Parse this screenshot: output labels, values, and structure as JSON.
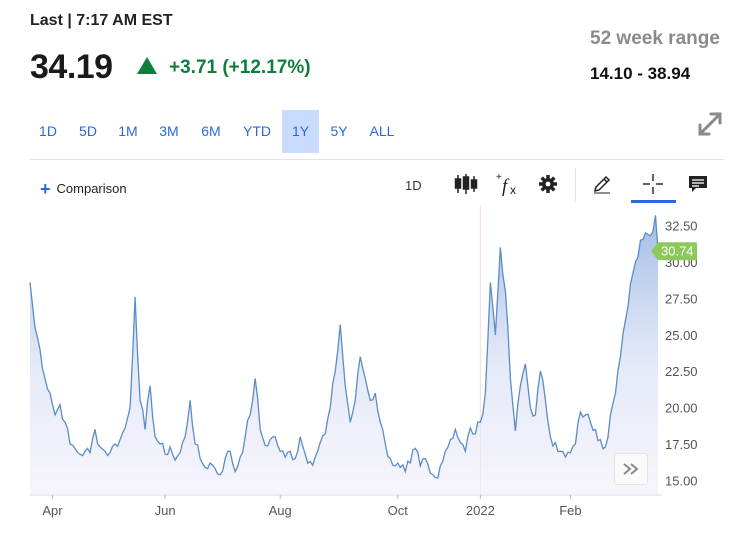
{
  "header": {
    "last_label": "Last | 7:17 AM EST",
    "price": "34.19",
    "change": "+3.71 (+12.17%)",
    "range_label": "52 week range",
    "range_value": "14.10 - 38.94"
  },
  "colors": {
    "up": "#0f7d3c",
    "accent": "#2a6ad8",
    "line": "#5b8cc6",
    "badge": "#8dc95a"
  },
  "ranges": [
    {
      "label": "1D",
      "active": false
    },
    {
      "label": "5D",
      "active": false
    },
    {
      "label": "1M",
      "active": false
    },
    {
      "label": "3M",
      "active": false
    },
    {
      "label": "6M",
      "active": false
    },
    {
      "label": "YTD",
      "active": false
    },
    {
      "label": "1Y",
      "active": true
    },
    {
      "label": "5Y",
      "active": false
    },
    {
      "label": "ALL",
      "active": false
    }
  ],
  "toolbar": {
    "comparison": "Comparison",
    "interval": "1D",
    "icons": [
      "candlestick-icon",
      "function-icon",
      "gear-icon",
      "pencil-icon",
      "crosshair-icon",
      "comment-icon"
    ]
  },
  "chart_data": {
    "type": "area",
    "x_ticks": [
      "Apr",
      "Jun",
      "Aug",
      "Oct",
      "2022",
      "Feb"
    ],
    "y_ticks": [
      "15.00",
      "17.50",
      "20.00",
      "22.50",
      "25.00",
      "27.50",
      "30.00",
      "32.50"
    ],
    "ylim": [
      14.0,
      33.5
    ],
    "last_value_label": "30.74",
    "last_value": 30.74,
    "n_points": 252,
    "keypoints": [
      [
        0,
        28.6
      ],
      [
        2,
        25.5
      ],
      [
        4,
        24.0
      ],
      [
        6,
        22.0
      ],
      [
        8,
        21.0
      ],
      [
        10,
        19.5
      ],
      [
        12,
        20.2
      ],
      [
        14,
        19.0
      ],
      [
        16,
        17.5
      ],
      [
        18,
        17.2
      ],
      [
        20,
        16.8
      ],
      [
        22,
        17.0
      ],
      [
        24,
        16.9
      ],
      [
        26,
        18.5
      ],
      [
        28,
        17.3
      ],
      [
        30,
        17.0
      ],
      [
        32,
        16.9
      ],
      [
        34,
        17.5
      ],
      [
        36,
        17.8
      ],
      [
        38,
        18.6
      ],
      [
        40,
        20.0
      ],
      [
        42,
        27.6
      ],
      [
        44,
        20.5
      ],
      [
        46,
        18.5
      ],
      [
        48,
        21.5
      ],
      [
        50,
        18.0
      ],
      [
        52,
        17.5
      ],
      [
        54,
        16.8
      ],
      [
        56,
        17.3
      ],
      [
        58,
        16.4
      ],
      [
        60,
        16.9
      ],
      [
        62,
        18.0
      ],
      [
        64,
        20.5
      ],
      [
        66,
        17.5
      ],
      [
        68,
        16.5
      ],
      [
        70,
        15.9
      ],
      [
        72,
        16.2
      ],
      [
        74,
        15.8
      ],
      [
        76,
        15.4
      ],
      [
        78,
        16.5
      ],
      [
        80,
        17.0
      ],
      [
        82,
        15.6
      ],
      [
        84,
        16.6
      ],
      [
        86,
        18.0
      ],
      [
        88,
        19.5
      ],
      [
        90,
        22.0
      ],
      [
        92,
        18.5
      ],
      [
        94,
        17.4
      ],
      [
        96,
        17.8
      ],
      [
        98,
        18.0
      ],
      [
        100,
        17.0
      ],
      [
        102,
        16.6
      ],
      [
        104,
        17.0
      ],
      [
        106,
        16.5
      ],
      [
        108,
        18.0
      ],
      [
        110,
        16.8
      ],
      [
        112,
        16.3
      ],
      [
        114,
        16.6
      ],
      [
        116,
        17.6
      ],
      [
        118,
        18.2
      ],
      [
        120,
        20.0
      ],
      [
        122,
        22.5
      ],
      [
        124,
        25.7
      ],
      [
        126,
        21.5
      ],
      [
        128,
        19.0
      ],
      [
        130,
        20.5
      ],
      [
        132,
        23.5
      ],
      [
        134,
        22.0
      ],
      [
        136,
        20.5
      ],
      [
        138,
        21.0
      ],
      [
        140,
        19.0
      ],
      [
        142,
        17.5
      ],
      [
        144,
        16.5
      ],
      [
        146,
        16.0
      ],
      [
        148,
        15.9
      ],
      [
        150,
        15.6
      ],
      [
        152,
        16.2
      ],
      [
        154,
        17.2
      ],
      [
        156,
        16.0
      ],
      [
        158,
        16.5
      ],
      [
        160,
        15.5
      ],
      [
        162,
        15.2
      ],
      [
        164,
        16.0
      ],
      [
        166,
        17.0
      ],
      [
        168,
        17.8
      ],
      [
        170,
        18.5
      ],
      [
        172,
        17.6
      ],
      [
        174,
        17.0
      ],
      [
        176,
        18.6
      ],
      [
        178,
        18.2
      ],
      [
        180,
        19.0
      ],
      [
        182,
        21.0
      ],
      [
        184,
        28.6
      ],
      [
        186,
        25.0
      ],
      [
        188,
        31.0
      ],
      [
        190,
        28.0
      ],
      [
        192,
        22.0
      ],
      [
        194,
        18.4
      ],
      [
        196,
        21.5
      ],
      [
        198,
        23.0
      ],
      [
        200,
        20.0
      ],
      [
        202,
        19.5
      ],
      [
        204,
        22.5
      ],
      [
        206,
        20.5
      ],
      [
        208,
        18.0
      ],
      [
        210,
        17.6
      ],
      [
        212,
        17.0
      ],
      [
        214,
        16.6
      ],
      [
        216,
        16.9
      ],
      [
        218,
        17.5
      ],
      [
        220,
        19.7
      ],
      [
        222,
        19.5
      ],
      [
        224,
        19.0
      ],
      [
        226,
        18.5
      ],
      [
        228,
        17.8
      ],
      [
        230,
        17.3
      ],
      [
        232,
        19.5
      ],
      [
        234,
        21.0
      ],
      [
        236,
        23.5
      ],
      [
        238,
        26.0
      ],
      [
        240,
        28.5
      ],
      [
        242,
        30.0
      ],
      [
        244,
        31.5
      ],
      [
        246,
        32.0
      ],
      [
        248,
        31.8
      ],
      [
        250,
        33.2
      ],
      [
        251,
        30.74
      ]
    ]
  }
}
